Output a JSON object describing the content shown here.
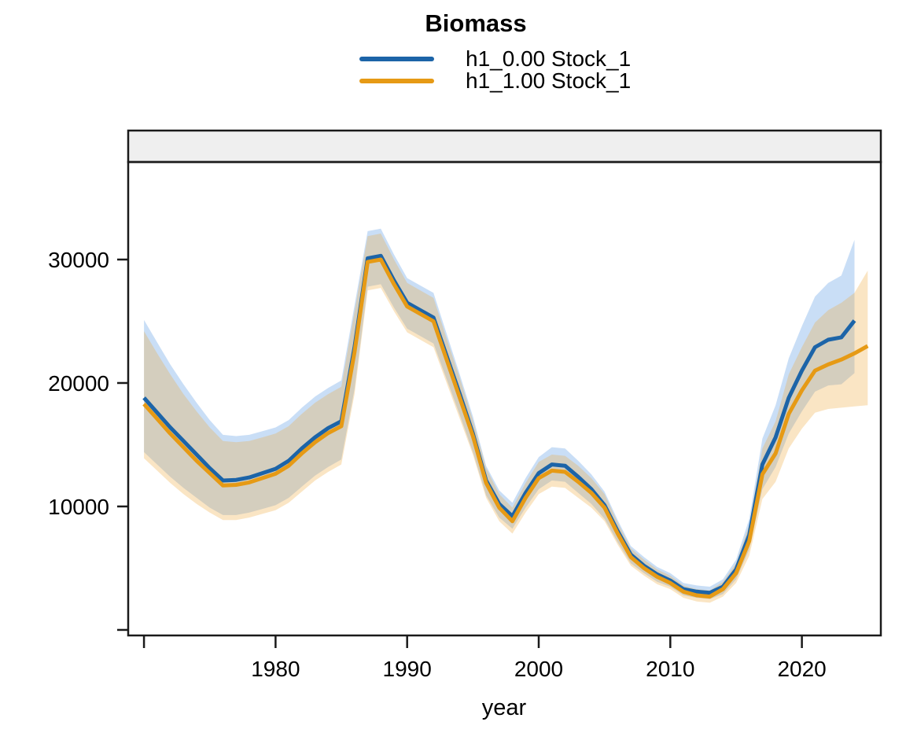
{
  "title": "Biomass",
  "xlabel": "year",
  "legend": [
    {
      "label": "h1_0.00 Stock_1",
      "color": "#1c64a8"
    },
    {
      "label": "h1_1.00 Stock_1",
      "color": "#e69a15"
    }
  ],
  "panel": {
    "strip_label": "",
    "strip_fill": "#efefef",
    "border_color": "#1a1a1a",
    "background": "#ffffff"
  },
  "chart_data": {
    "type": "line",
    "title": "Biomass",
    "xlabel": "year",
    "ylabel": "",
    "grid": false,
    "legend_position": "top-center",
    "xlim": [
      1968.8,
      2026.0
    ],
    "ylim": [
      -450,
      37900
    ],
    "x_ticks": [
      {
        "value": 1970,
        "label": ""
      },
      {
        "value": 1980,
        "label": "1980"
      },
      {
        "value": 1990,
        "label": "1990"
      },
      {
        "value": 2000,
        "label": "2000"
      },
      {
        "value": 2010,
        "label": "2010"
      },
      {
        "value": 2020,
        "label": "2020"
      }
    ],
    "y_ticks": [
      {
        "value": 0,
        "label": ""
      },
      {
        "value": 10000,
        "label": "10000"
      },
      {
        "value": 20000,
        "label": "20000"
      },
      {
        "value": 30000,
        "label": "30000"
      }
    ],
    "series": [
      {
        "name": "h1_0.00 Stock_1",
        "color": "#1c64a8",
        "ribbon_color": "rgba(100,160,230,0.35)",
        "x": [
          1970,
          1971,
          1972,
          1973,
          1974,
          1975,
          1976,
          1977,
          1978,
          1979,
          1980,
          1981,
          1982,
          1983,
          1984,
          1985,
          1986,
          1987,
          1988,
          1989,
          1990,
          1991,
          1992,
          1993,
          1994,
          1995,
          1996,
          1997,
          1998,
          1999,
          2000,
          2001,
          2002,
          2003,
          2004,
          2005,
          2006,
          2007,
          2008,
          2009,
          2010,
          2011,
          2012,
          2013,
          2014,
          2015,
          2016,
          2017,
          2018,
          2019,
          2020,
          2021,
          2022,
          2023,
          2024
        ],
        "y": [
          18800,
          17600,
          16400,
          15300,
          14200,
          13100,
          12100,
          12150,
          12350,
          12700,
          13050,
          13700,
          14700,
          15600,
          16350,
          16900,
          22900,
          30100,
          30300,
          28300,
          26500,
          25900,
          25300,
          22200,
          19100,
          15900,
          12100,
          10200,
          9200,
          11100,
          12700,
          13400,
          13300,
          12400,
          11400,
          10100,
          8000,
          6100,
          5200,
          4500,
          4000,
          3300,
          3100,
          3000,
          3500,
          4900,
          7700,
          13400,
          15600,
          18800,
          21000,
          22900,
          23500,
          23700,
          25050
        ],
        "lower": [
          14400,
          13400,
          12400,
          11500,
          10700,
          9900,
          9300,
          9300,
          9500,
          9800,
          10100,
          10700,
          11600,
          12500,
          13200,
          13800,
          19500,
          27800,
          28000,
          26100,
          24400,
          23800,
          23200,
          20300,
          17400,
          14400,
          10900,
          9100,
          8200,
          9900,
          11400,
          12100,
          12000,
          11100,
          10200,
          9000,
          7100,
          5400,
          4600,
          3900,
          3500,
          2800,
          2600,
          2500,
          2900,
          4100,
          6500,
          11400,
          13200,
          15900,
          17700,
          19300,
          19800,
          19900,
          20800
        ],
        "upper": [
          25100,
          23300,
          21500,
          19900,
          18400,
          17000,
          15800,
          15700,
          15800,
          16100,
          16400,
          17000,
          18000,
          18900,
          19600,
          20200,
          26300,
          32300,
          32500,
          30400,
          28500,
          27900,
          27300,
          24000,
          20700,
          17300,
          13300,
          11300,
          10300,
          12300,
          14000,
          14800,
          14700,
          13700,
          12600,
          11200,
          8900,
          6800,
          5900,
          5100,
          4600,
          3800,
          3600,
          3500,
          4100,
          5700,
          9000,
          15500,
          18200,
          22000,
          24600,
          27000,
          28100,
          28700,
          31600
        ]
      },
      {
        "name": "h1_1.00 Stock_1",
        "color": "#e69a15",
        "ribbon_color": "rgba(240,170,60,0.30)",
        "x": [
          1970,
          1971,
          1972,
          1973,
          1974,
          1975,
          1976,
          1977,
          1978,
          1979,
          1980,
          1981,
          1982,
          1983,
          1984,
          1985,
          1986,
          1987,
          1988,
          1989,
          1990,
          1991,
          1992,
          1993,
          1994,
          1995,
          1996,
          1997,
          1998,
          1999,
          2000,
          2001,
          2002,
          2003,
          2004,
          2005,
          2006,
          2007,
          2008,
          2009,
          2010,
          2011,
          2012,
          2013,
          2014,
          2015,
          2016,
          2017,
          2018,
          2019,
          2020,
          2021,
          2022,
          2023,
          2024,
          2025
        ],
        "y": [
          18300,
          17100,
          15900,
          14800,
          13700,
          12700,
          11700,
          11750,
          11950,
          12300,
          12650,
          13300,
          14300,
          15200,
          15950,
          16500,
          22500,
          29800,
          30000,
          28000,
          26200,
          25600,
          25000,
          21900,
          18800,
          15700,
          11900,
          9900,
          8800,
          10700,
          12300,
          12900,
          12800,
          12000,
          11100,
          9900,
          7800,
          5900,
          5000,
          4300,
          3800,
          3100,
          2800,
          2700,
          3300,
          4600,
          7200,
          12600,
          14300,
          17500,
          19400,
          21000,
          21500,
          21900,
          22400,
          23000
        ],
        "lower": [
          13900,
          12900,
          11900,
          11000,
          10200,
          9500,
          8900,
          8900,
          9100,
          9400,
          9700,
          10300,
          11200,
          12100,
          12800,
          13400,
          19100,
          27500,
          27700,
          25800,
          24100,
          23500,
          22900,
          20000,
          17100,
          14200,
          10700,
          8800,
          7800,
          9500,
          11000,
          11600,
          11500,
          10700,
          9900,
          8800,
          6900,
          5200,
          4400,
          3700,
          3300,
          2600,
          2300,
          2200,
          2700,
          3800,
          6000,
          10600,
          12000,
          14700,
          16300,
          17600,
          17900,
          18000,
          18100,
          18200
        ],
        "upper": [
          24200,
          22400,
          20700,
          19100,
          17700,
          16400,
          15300,
          15200,
          15300,
          15600,
          15900,
          16500,
          17500,
          18400,
          19100,
          19700,
          25800,
          31900,
          32100,
          30000,
          28100,
          27500,
          26900,
          23600,
          20400,
          17000,
          13100,
          11000,
          9900,
          11900,
          13600,
          14200,
          14100,
          13300,
          12300,
          11000,
          8700,
          6600,
          5700,
          4900,
          4400,
          3600,
          3300,
          3200,
          3900,
          5400,
          8500,
          14700,
          16900,
          20700,
          22900,
          24900,
          25900,
          26500,
          27300,
          29100
        ]
      }
    ]
  }
}
